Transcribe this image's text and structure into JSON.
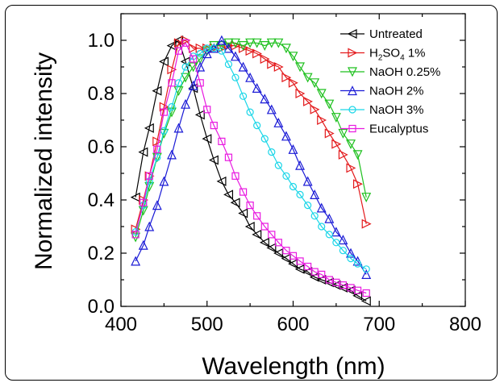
{
  "chart_data": {
    "type": "line",
    "xlabel": "Wavelength (nm)",
    "ylabel": "Normalized intensity",
    "xlim": [
      400,
      800
    ],
    "ylim": [
      0,
      1.1
    ],
    "xticks": [
      400,
      500,
      600,
      700,
      800
    ],
    "yticks": [
      0.0,
      0.2,
      0.4,
      0.6,
      0.8,
      1.0
    ],
    "xtick_labels": [
      "400",
      "500",
      "600",
      "700",
      "800"
    ],
    "ytick_labels": [
      "0.0",
      "0.2",
      "0.4",
      "0.6",
      "0.8",
      "1.0"
    ],
    "legend_position": "top-right",
    "series": [
      {
        "name": "Untreated",
        "name_main": "Untreated",
        "marker": "triangle-left",
        "color": "#000000",
        "x": [
          417,
          426,
          433,
          442,
          450,
          459,
          467,
          475,
          484,
          492,
          500,
          508,
          517,
          525,
          533,
          542,
          550,
          558,
          567,
          575,
          583,
          592,
          600,
          608,
          617,
          625,
          633,
          642,
          650,
          658,
          667,
          675,
          685
        ],
        "y": [
          0.41,
          0.58,
          0.67,
          0.81,
          0.92,
          0.98,
          1.0,
          0.92,
          0.82,
          0.72,
          0.63,
          0.55,
          0.47,
          0.42,
          0.39,
          0.35,
          0.3,
          0.27,
          0.24,
          0.22,
          0.2,
          0.18,
          0.16,
          0.14,
          0.13,
          0.11,
          0.1,
          0.09,
          0.08,
          0.07,
          0.06,
          0.04,
          0.02
        ]
      },
      {
        "name": "H2SO4 1%",
        "name_main": "H",
        "name_sub1": "2",
        "name_mid": "SO",
        "name_sub2": "4",
        "name_tail": " 1%",
        "marker": "triangle-right",
        "color": "#e31a1c",
        "x": [
          417,
          426,
          433,
          442,
          450,
          459,
          467,
          475,
          484,
          492,
          500,
          508,
          517,
          525,
          533,
          542,
          550,
          558,
          567,
          575,
          583,
          592,
          600,
          608,
          617,
          625,
          633,
          642,
          650,
          658,
          667,
          675,
          685
        ],
        "y": [
          0.29,
          0.4,
          0.49,
          0.62,
          0.75,
          0.89,
          0.99,
          1.0,
          0.97,
          0.97,
          0.97,
          0.97,
          0.97,
          0.98,
          0.98,
          0.97,
          0.96,
          0.95,
          0.93,
          0.91,
          0.9,
          0.86,
          0.84,
          0.8,
          0.77,
          0.74,
          0.7,
          0.65,
          0.61,
          0.57,
          0.52,
          0.46,
          0.31
        ]
      },
      {
        "name": "NaOH 0.25%",
        "name_main": "NaOH 0.25%",
        "marker": "triangle-down",
        "color": "#1ec01e",
        "x": [
          417,
          426,
          433,
          442,
          450,
          459,
          467,
          475,
          484,
          492,
          500,
          508,
          517,
          525,
          533,
          542,
          550,
          558,
          567,
          575,
          583,
          592,
          600,
          608,
          617,
          625,
          633,
          642,
          650,
          658,
          667,
          675,
          685
        ],
        "y": [
          0.26,
          0.36,
          0.45,
          0.56,
          0.65,
          0.73,
          0.81,
          0.86,
          0.9,
          0.93,
          0.96,
          0.98,
          0.98,
          0.99,
          0.99,
          0.98,
          0.99,
          0.99,
          0.98,
          0.99,
          0.99,
          0.97,
          0.94,
          0.9,
          0.86,
          0.84,
          0.8,
          0.76,
          0.71,
          0.65,
          0.61,
          0.57,
          0.41
        ]
      },
      {
        "name": "NaOH 2%",
        "name_main": "NaOH 2%",
        "marker": "triangle-up",
        "color": "#1a1ad6",
        "x": [
          417,
          426,
          433,
          442,
          450,
          459,
          467,
          475,
          484,
          492,
          500,
          508,
          517,
          525,
          533,
          542,
          550,
          558,
          567,
          575,
          583,
          592,
          600,
          608,
          617,
          625,
          633,
          642,
          650,
          658,
          667,
          675,
          685
        ],
        "y": [
          0.17,
          0.23,
          0.3,
          0.38,
          0.47,
          0.57,
          0.67,
          0.76,
          0.83,
          0.9,
          0.95,
          0.97,
          1.0,
          0.97,
          0.94,
          0.9,
          0.86,
          0.82,
          0.78,
          0.74,
          0.69,
          0.64,
          0.59,
          0.53,
          0.47,
          0.42,
          0.37,
          0.33,
          0.28,
          0.25,
          0.2,
          0.17,
          0.12
        ]
      },
      {
        "name": "NaOH 3%",
        "name_main": "NaOH 3%",
        "marker": "circle",
        "color": "#1ad6e8",
        "x": [
          417,
          426,
          433,
          442,
          450,
          459,
          467,
          475,
          484,
          492,
          500,
          508,
          517,
          525,
          533,
          542,
          550,
          558,
          567,
          575,
          583,
          592,
          600,
          608,
          617,
          625,
          633,
          642,
          650,
          658,
          667,
          675,
          685
        ],
        "y": [
          0.28,
          0.38,
          0.47,
          0.56,
          0.66,
          0.75,
          0.84,
          0.9,
          0.94,
          0.95,
          0.97,
          0.97,
          0.96,
          0.91,
          0.86,
          0.79,
          0.73,
          0.68,
          0.63,
          0.58,
          0.53,
          0.49,
          0.45,
          0.42,
          0.38,
          0.34,
          0.3,
          0.27,
          0.24,
          0.21,
          0.18,
          0.16,
          0.14
        ]
      },
      {
        "name": "Eucalyptus",
        "name_main": "Eucalyptus",
        "marker": "square",
        "color": "#e81ae0",
        "x": [
          417,
          426,
          433,
          442,
          450,
          459,
          467,
          475,
          484,
          492,
          500,
          508,
          517,
          525,
          533,
          542,
          550,
          558,
          567,
          575,
          583,
          592,
          600,
          608,
          617,
          625,
          633,
          642,
          650,
          658,
          667,
          675,
          685
        ],
        "y": [
          0.27,
          0.39,
          0.49,
          0.59,
          0.73,
          0.84,
          0.96,
          0.99,
          0.93,
          0.84,
          0.74,
          0.68,
          0.62,
          0.56,
          0.49,
          0.43,
          0.38,
          0.34,
          0.3,
          0.27,
          0.24,
          0.21,
          0.19,
          0.17,
          0.15,
          0.13,
          0.12,
          0.1,
          0.09,
          0.08,
          0.07,
          0.06,
          0.05
        ]
      }
    ]
  }
}
